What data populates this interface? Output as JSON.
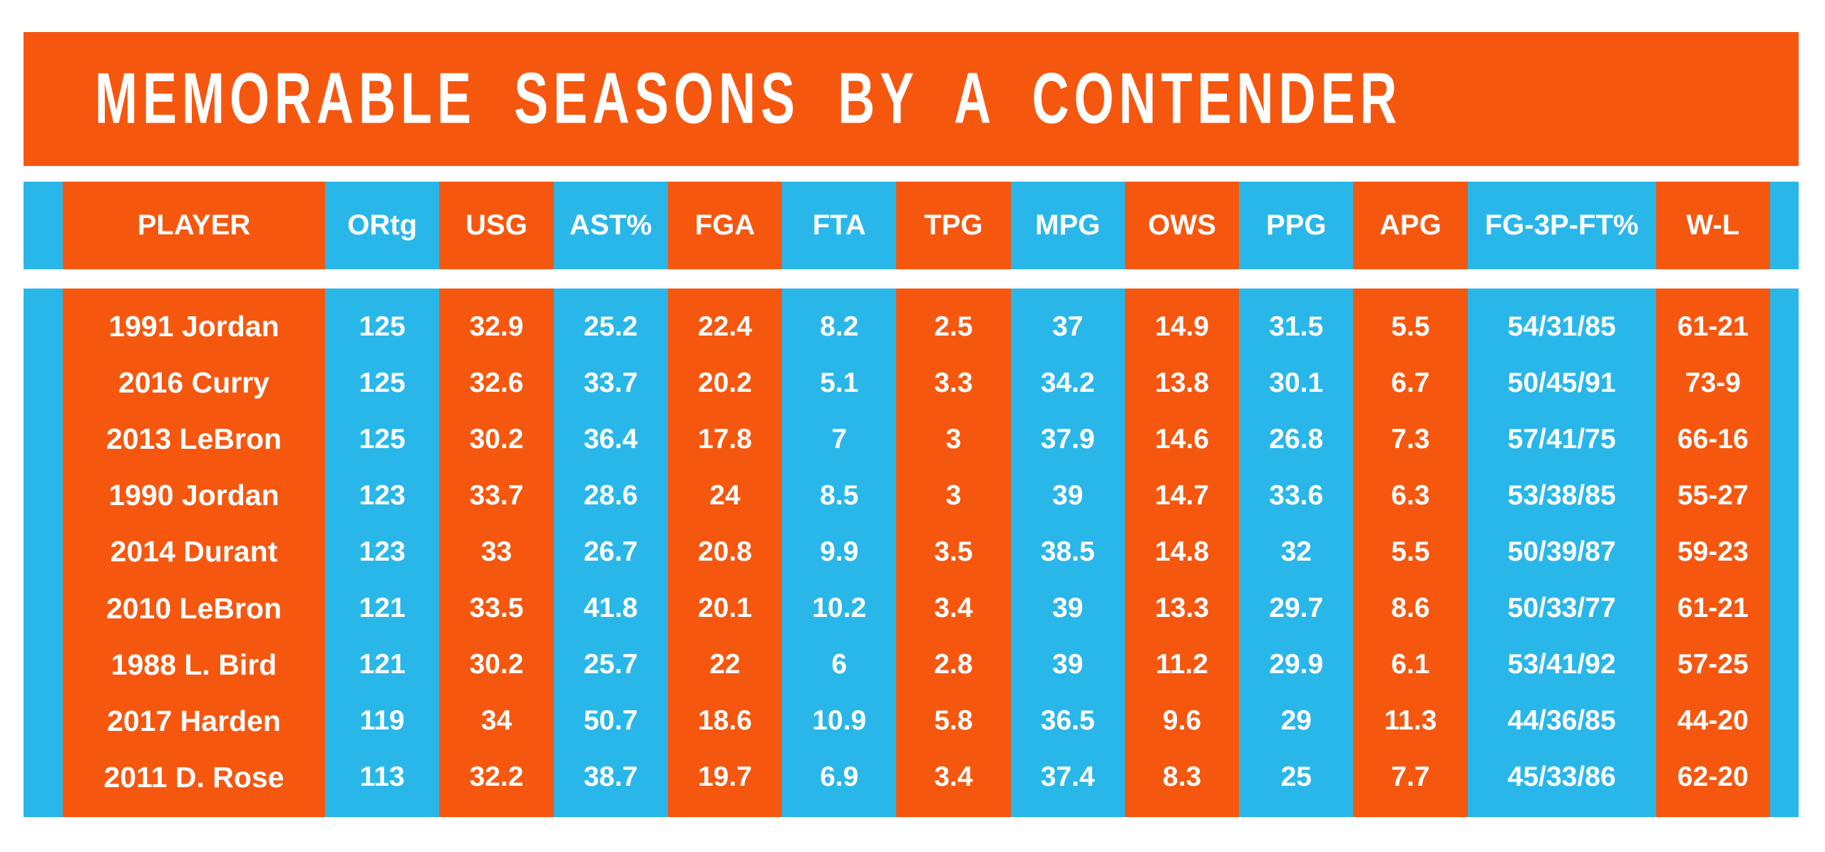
{
  "colors": {
    "orange": "#F6570F",
    "cyan": "#29B7E9",
    "text": "#FFFFFF",
    "page-bg": "#FFFFFF"
  },
  "chart_data": {
    "type": "table",
    "title": "MEMORABLE SEASONS BY A CONTENDER",
    "layout": {
      "striping": "columns alternate cyan/orange, thin cyan edge stripes both sides",
      "grid": "off",
      "header_position": "top"
    },
    "headers": [
      "PLAYER",
      "ORtg",
      "USG",
      "AST%",
      "FGA",
      "FTA",
      "TPG",
      "MPG",
      "OWS",
      "PPG",
      "APG",
      "FG-3P-FT%",
      "W-L"
    ],
    "rows": [
      [
        "1991 Jordan",
        "125",
        "32.9",
        "25.2",
        "22.4",
        "8.2",
        "2.5",
        "37",
        "14.9",
        "31.5",
        "5.5",
        "54/31/85",
        "61-21"
      ],
      [
        "2016 Curry",
        "125",
        "32.6",
        "33.7",
        "20.2",
        "5.1",
        "3.3",
        "34.2",
        "13.8",
        "30.1",
        "6.7",
        "50/45/91",
        "73-9"
      ],
      [
        "2013 LeBron",
        "125",
        "30.2",
        "36.4",
        "17.8",
        "7",
        "3",
        "37.9",
        "14.6",
        "26.8",
        "7.3",
        "57/41/75",
        "66-16"
      ],
      [
        "1990 Jordan",
        "123",
        "33.7",
        "28.6",
        "24",
        "8.5",
        "3",
        "39",
        "14.7",
        "33.6",
        "6.3",
        "53/38/85",
        "55-27"
      ],
      [
        "2014 Durant",
        "123",
        "33",
        "26.7",
        "20.8",
        "9.9",
        "3.5",
        "38.5",
        "14.8",
        "32",
        "5.5",
        "50/39/87",
        "59-23"
      ],
      [
        "2010 LeBron",
        "121",
        "33.5",
        "41.8",
        "20.1",
        "10.2",
        "3.4",
        "39",
        "13.3",
        "29.7",
        "8.6",
        "50/33/77",
        "61-21"
      ],
      [
        "1988 L. Bird",
        "121",
        "30.2",
        "25.7",
        "22",
        "6",
        "2.8",
        "39",
        "11.2",
        "29.9",
        "6.1",
        "53/41/92",
        "57-25"
      ],
      [
        "2017 Harden",
        "119",
        "34",
        "50.7",
        "18.6",
        "10.9",
        "5.8",
        "36.5",
        "9.6",
        "29",
        "11.3",
        "44/36/85",
        "44-20"
      ],
      [
        "2011 D. Rose",
        "113",
        "32.2",
        "38.7",
        "19.7",
        "6.9",
        "3.4",
        "37.4",
        "8.3",
        "25",
        "7.7",
        "45/33/86",
        "62-20"
      ]
    ]
  }
}
